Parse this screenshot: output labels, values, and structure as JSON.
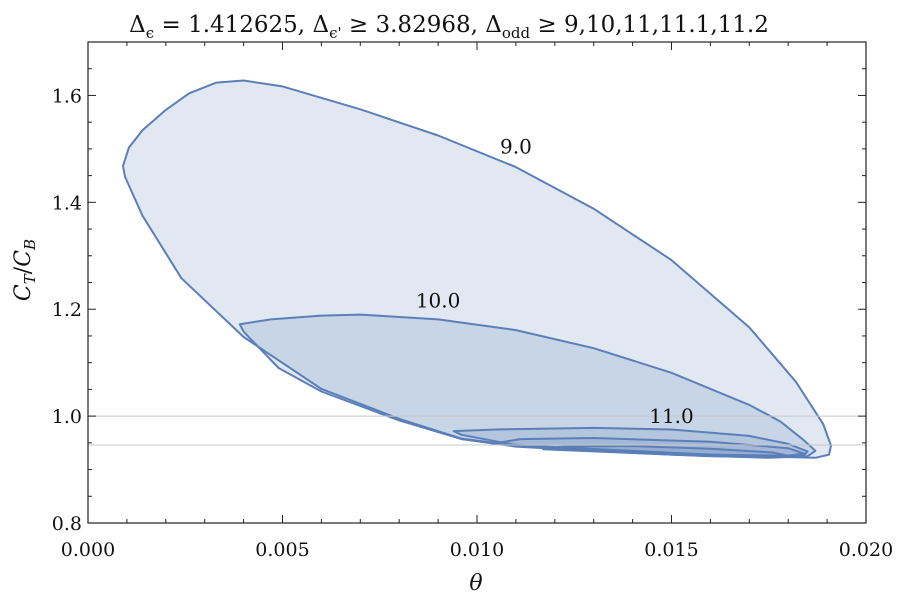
{
  "chart_data": {
    "type": "area",
    "title": "Δϵ = 1.412625, Δϵ' ≥ 3.82968, Δodd ≥ 9,10,11,11.1,11.2",
    "title_parts": {
      "delta_eps": "Δ",
      "sub_eps": "ϵ",
      "eps_value": " = 1.412625, ",
      "delta_epsp": "Δ",
      "sub_epsp": "ϵ'",
      "epsp_value": " ≥ 3.82968, ",
      "delta_odd": "Δ",
      "sub_odd": "odd",
      "odd_values": " ≥ 9,10,11,11.1,11.2"
    },
    "xlabel": "θ",
    "ylabel": {
      "c": "C",
      "sub1": "T",
      "slash": "/",
      "c2": "C",
      "sub2": "B"
    },
    "xlim": [
      0.0,
      0.02
    ],
    "ylim": [
      0.8,
      1.7
    ],
    "x_ticks": [
      "0.000",
      "0.005",
      "0.010",
      "0.015",
      "0.020"
    ],
    "y_ticks": [
      "0.8",
      "1.0",
      "1.2",
      "1.4",
      "1.6"
    ],
    "grid": false,
    "reference_lines_y": [
      1.0,
      0.946
    ],
    "colors": {
      "line": "#5b7fb8",
      "fill": "#5b7fb8",
      "reference": "#c8c8c8",
      "frame": "#222222"
    },
    "series": [
      {
        "label": "9.0",
        "points": [
          [
            0.0009,
            1.468
          ],
          [
            0.00105,
            1.502
          ],
          [
            0.0014,
            1.535
          ],
          [
            0.002,
            1.573
          ],
          [
            0.0026,
            1.604
          ],
          [
            0.0033,
            1.624
          ],
          [
            0.004,
            1.628
          ],
          [
            0.005,
            1.617
          ],
          [
            0.007,
            1.574
          ],
          [
            0.009,
            1.525
          ],
          [
            0.011,
            1.466
          ],
          [
            0.013,
            1.388
          ],
          [
            0.015,
            1.292
          ],
          [
            0.017,
            1.166
          ],
          [
            0.0182,
            1.064
          ],
          [
            0.0189,
            0.985
          ],
          [
            0.0191,
            0.945
          ],
          [
            0.01905,
            0.928
          ],
          [
            0.0187,
            0.922
          ],
          [
            0.0176,
            0.924
          ],
          [
            0.015,
            0.93
          ],
          [
            0.013,
            0.937
          ],
          [
            0.011,
            0.945
          ],
          [
            0.0096,
            0.958
          ],
          [
            0.008,
            0.995
          ],
          [
            0.006,
            1.051
          ],
          [
            0.004,
            1.148
          ],
          [
            0.0024,
            1.258
          ],
          [
            0.0014,
            1.375
          ],
          [
            0.00095,
            1.448
          ]
        ],
        "label_pos": [
          0.011,
          1.491
        ]
      },
      {
        "label": "10.0",
        "points": [
          [
            0.0039,
            1.172
          ],
          [
            0.0047,
            1.181
          ],
          [
            0.006,
            1.188
          ],
          [
            0.007,
            1.19
          ],
          [
            0.009,
            1.181
          ],
          [
            0.011,
            1.161
          ],
          [
            0.013,
            1.127
          ],
          [
            0.015,
            1.081
          ],
          [
            0.017,
            1.021
          ],
          [
            0.0178,
            0.99
          ],
          [
            0.0184,
            0.955
          ],
          [
            0.0187,
            0.935
          ],
          [
            0.0185,
            0.925
          ],
          [
            0.0175,
            0.922
          ],
          [
            0.015,
            0.928
          ],
          [
            0.013,
            0.935
          ],
          [
            0.011,
            0.943
          ],
          [
            0.0096,
            0.957
          ],
          [
            0.008,
            0.992
          ],
          [
            0.006,
            1.046
          ],
          [
            0.0049,
            1.09
          ],
          [
            0.004,
            1.158
          ]
        ],
        "label_pos": [
          0.009,
          1.203
        ]
      },
      {
        "label": "11.0",
        "points": [
          [
            0.0094,
            0.972
          ],
          [
            0.0105,
            0.975
          ],
          [
            0.013,
            0.978
          ],
          [
            0.015,
            0.975
          ],
          [
            0.017,
            0.963
          ],
          [
            0.018,
            0.948
          ],
          [
            0.0185,
            0.934
          ],
          [
            0.0184,
            0.926
          ],
          [
            0.017,
            0.925
          ],
          [
            0.015,
            0.93
          ],
          [
            0.013,
            0.937
          ],
          [
            0.011,
            0.946
          ],
          [
            0.0096,
            0.965
          ]
        ],
        "label_pos": [
          0.015,
          0.987
        ]
      },
      {
        "label": "",
        "points": [
          [
            0.0104,
            0.948
          ],
          [
            0.0111,
            0.957
          ],
          [
            0.013,
            0.959
          ],
          [
            0.016,
            0.952
          ],
          [
            0.018,
            0.94
          ],
          [
            0.0184,
            0.93
          ],
          [
            0.018,
            0.926
          ],
          [
            0.016,
            0.928
          ],
          [
            0.014,
            0.935
          ],
          [
            0.012,
            0.942
          ],
          [
            0.0106,
            0.948
          ]
        ]
      },
      {
        "label": "",
        "points": [
          [
            0.0117,
            0.938
          ],
          [
            0.0122,
            0.943
          ],
          [
            0.014,
            0.944
          ],
          [
            0.016,
            0.939
          ],
          [
            0.0176,
            0.932
          ],
          [
            0.018,
            0.926
          ],
          [
            0.0176,
            0.923
          ],
          [
            0.016,
            0.925
          ],
          [
            0.014,
            0.931
          ],
          [
            0.012,
            0.937
          ]
        ]
      }
    ]
  }
}
